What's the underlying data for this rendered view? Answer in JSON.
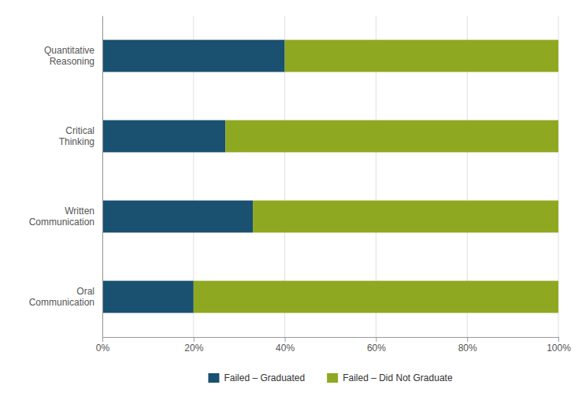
{
  "chart_data": {
    "type": "bar",
    "orientation": "horizontal",
    "stacked": true,
    "categories": [
      "Quantitative\nReasoning",
      "Critical\nThinking",
      "Written\nCommunication",
      "Oral\nCommunication"
    ],
    "series": [
      {
        "name": "Failed – Graduated",
        "color": "#1a5070",
        "values": [
          40,
          27,
          33,
          20
        ]
      },
      {
        "name": "Failed – Did Not Graduate",
        "color": "#8fa822",
        "values": [
          60,
          73,
          67,
          80
        ]
      }
    ],
    "xlim": [
      0,
      100
    ],
    "xticks": [
      {
        "value": 0,
        "label": "0%"
      },
      {
        "value": 20,
        "label": "20%"
      },
      {
        "value": 40,
        "label": "40%"
      },
      {
        "value": 60,
        "label": "60%"
      },
      {
        "value": 80,
        "label": "80%"
      },
      {
        "value": 100,
        "label": "100%"
      }
    ],
    "grid": true,
    "legend": "bottom"
  }
}
